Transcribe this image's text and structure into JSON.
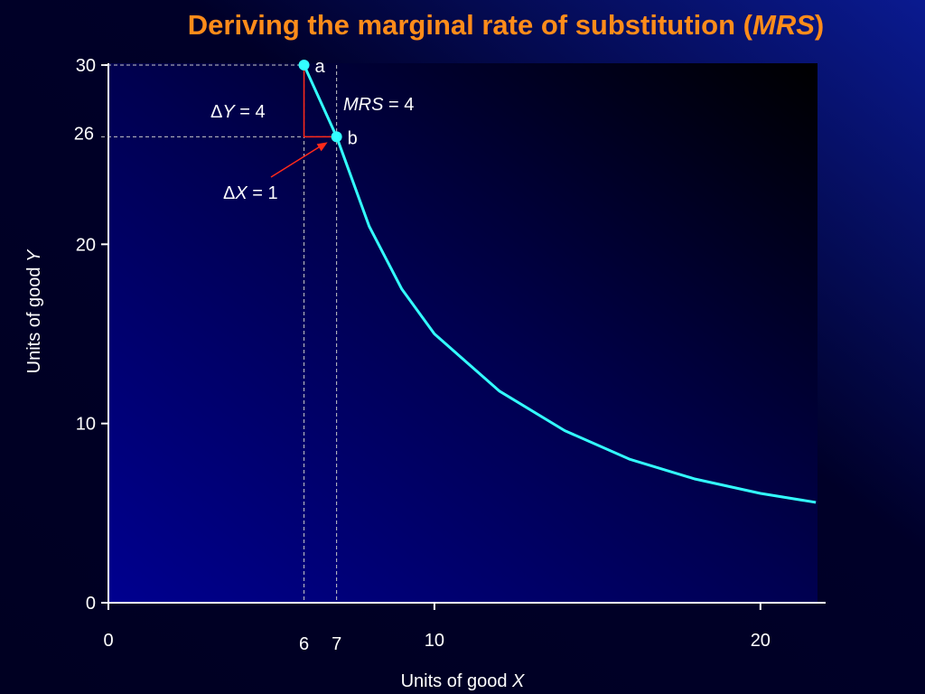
{
  "chart_data": {
    "type": "line",
    "title": [
      "Deriving the marginal rate of substitution (",
      "MRS",
      ")"
    ],
    "x_label": [
      "Units of good ",
      "X"
    ],
    "y_label": [
      "Units of good ",
      "Y"
    ],
    "xlim": [
      0,
      22
    ],
    "ylim": [
      0,
      30
    ],
    "xticks": [
      0,
      10,
      20
    ],
    "yticks": [
      0,
      10,
      20,
      30
    ],
    "xticks_highlight": [
      6,
      7
    ],
    "yticks_highlight": [
      26
    ],
    "highlight_color": "#ff2a1a",
    "series": [
      {
        "color": "#33ffff",
        "x": [
          6,
          7,
          8,
          9,
          10,
          12,
          14,
          16,
          18,
          20,
          21.7
        ],
        "values": [
          30,
          26,
          21,
          17.5,
          15,
          11.8,
          9.6,
          8,
          6.9,
          6.1,
          5.6
        ]
      }
    ],
    "points": [
      {
        "label": "a",
        "x": 6,
        "y": 30
      },
      {
        "label": "b",
        "x": 7,
        "y": 26
      }
    ],
    "annotations": {
      "delta_y": [
        "Δ",
        "Y",
        " = 4"
      ],
      "delta_x": [
        "Δ",
        "X",
        " = 1"
      ],
      "mrs": [
        "MRS",
        " = 4"
      ]
    }
  }
}
